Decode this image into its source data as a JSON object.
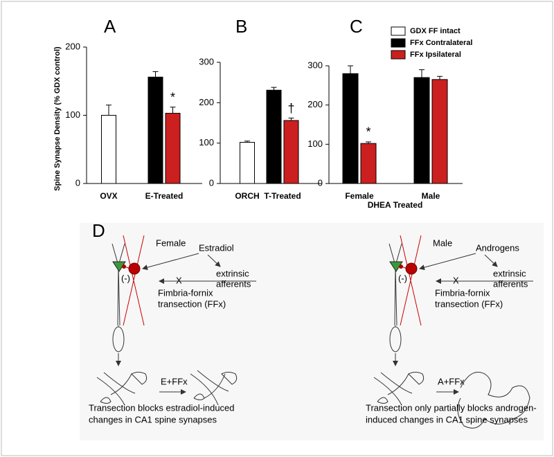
{
  "chart_data": [
    {
      "type": "bar",
      "panel_label": "A",
      "y_label": "Spine Synapse Density (% GDX control)",
      "categories": [
        "OVX",
        "E-Treated"
      ],
      "ylim": [
        0,
        200
      ],
      "yticks": [
        0,
        100,
        200
      ],
      "legend": false,
      "series": [
        {
          "name": "GDX FF intact",
          "color": "#ffffff",
          "values": [
            100,
            null
          ],
          "errors": [
            15,
            null
          ]
        },
        {
          "name": "FFx Contralateral",
          "color": "#000000",
          "values": [
            null,
            156
          ],
          "errors": [
            null,
            8
          ]
        },
        {
          "name": "FFx Ipsilateral",
          "color": "#cc1f1f",
          "values": [
            null,
            103
          ],
          "errors": [
            null,
            9
          ],
          "annotation": "*"
        }
      ]
    },
    {
      "type": "bar",
      "panel_label": "B",
      "categories": [
        "ORCH",
        "T-Treated"
      ],
      "ylim": [
        0,
        300
      ],
      "yticks": [
        100,
        200,
        300,
        0
      ],
      "legend": false,
      "series": [
        {
          "name": "GDX FF intact",
          "color": "#ffffff",
          "values": [
            102,
            null
          ],
          "errors": [
            3,
            null
          ]
        },
        {
          "name": "FFx Contralateral",
          "color": "#000000",
          "values": [
            null,
            231
          ],
          "errors": [
            null,
            7
          ]
        },
        {
          "name": "FFx Ipsilateral",
          "color": "#cc1f1f",
          "values": [
            null,
            156
          ],
          "errors": [
            null,
            6
          ],
          "annotation": "†"
        }
      ]
    },
    {
      "type": "bar",
      "panel_label": "C",
      "x_label": "DHEA Treated",
      "categories": [
        "Female",
        "Male"
      ],
      "ylim": [
        0,
        300
      ],
      "yticks": [
        0,
        100,
        200,
        300
      ],
      "legend": true,
      "legend_position": "top-right",
      "series": [
        {
          "name": "GDX FF intact",
          "color": "#ffffff",
          "values": [
            null,
            null
          ],
          "errors": [
            null,
            null
          ]
        },
        {
          "name": "FFx Contralateral",
          "color": "#000000",
          "values": [
            280,
            270
          ],
          "errors": [
            20,
            20
          ]
        },
        {
          "name": "FFx Ipsilateral",
          "color": "#cc1f1f",
          "values": [
            102,
            265
          ],
          "errors": [
            4,
            8
          ],
          "annotation_values": [
            "*",
            null
          ]
        }
      ]
    }
  ],
  "diagram": {
    "label": "D",
    "panels": [
      {
        "title": "Female",
        "hormone": "Estradiol",
        "inhibit": "(-)",
        "afferents": [
          "extrinsic",
          "afferents"
        ],
        "cut": "X",
        "lesion": [
          "Fimbria-fornix",
          "transection (FFx)"
        ],
        "treatment": "E+FFx",
        "caption": [
          "Transection blocks estradiol-induced",
          "changes in CA1 spine synapses"
        ]
      },
      {
        "title": "Male",
        "hormone": "Androgens",
        "inhibit": "(-)",
        "afferents": [
          "extrinsic",
          "afferents"
        ],
        "cut": "X",
        "lesion": [
          "Fimbria-fornix",
          "transection (FFx)"
        ],
        "treatment": "A+FFx",
        "caption": [
          "Transection only partially blocks androgen-",
          "induced changes in  CA1 spine synapses"
        ]
      }
    ]
  }
}
